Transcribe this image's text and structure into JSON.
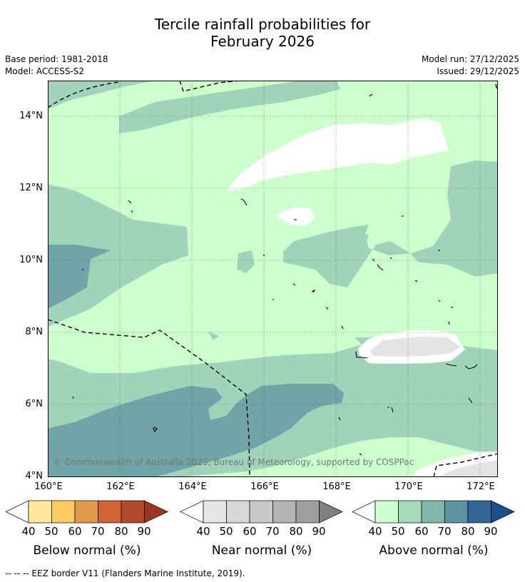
{
  "title_line1": "Tercile rainfall probabilities for",
  "title_line2": "February 2026",
  "left_info": {
    "base_period": "Base period: 1981-2018",
    "model": "Model: ACCESS-S2"
  },
  "right_info": {
    "model_run": "Model run: 27/12/2025",
    "issued": "Issued: 29/12/2025"
  },
  "map": {
    "lat_labels": [
      "14°N",
      "12°N",
      "10°N",
      "8°N",
      "6°N",
      "4°N"
    ],
    "lon_labels": [
      "160°E",
      "162°E",
      "164°E",
      "166°E",
      "168°E",
      "170°E",
      "172°E"
    ],
    "copyright": "© Commonwealth of Australia 2025, Bureau of Meteorology, supported by COSPPac"
  },
  "colorbars": [
    {
      "title": "Below normal (%)",
      "ticks": [
        "40",
        "50",
        "60",
        "70",
        "80",
        "90"
      ],
      "colors": [
        "#ffffff",
        "#fee99d",
        "#fdcc65",
        "#e3994a",
        "#cf6535",
        "#b24a2a",
        "#9a3623"
      ]
    },
    {
      "title": "Near normal (%)",
      "ticks": [
        "40",
        "50",
        "60",
        "70",
        "80",
        "90"
      ],
      "colors": [
        "#ffffff",
        "#e5e5e5",
        "#d8d8d8",
        "#c8c8c8",
        "#b4b4b4",
        "#9f9f9f",
        "#808080"
      ]
    },
    {
      "title": "Above normal (%)",
      "ticks": [
        "40",
        "50",
        "60",
        "70",
        "80",
        "90"
      ],
      "colors": [
        "#ffffff",
        "#ccffcc",
        "#a5d9b7",
        "#80b7aa",
        "#5a93a2",
        "#336699",
        "#1d4e89"
      ]
    }
  ],
  "footer": "--  --  -- EEZ border V11 (Flanders Marine Institute, 2019)."
}
